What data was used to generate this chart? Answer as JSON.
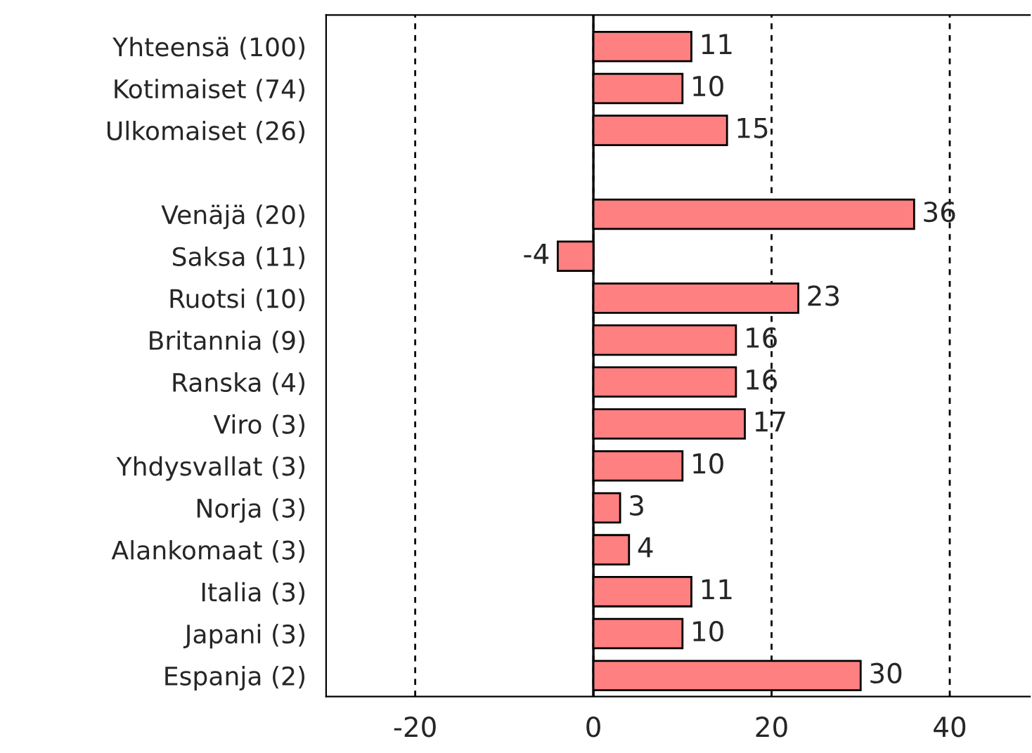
{
  "chart_data": {
    "type": "bar",
    "orientation": "horizontal",
    "categories": [
      "Yhteensä (100)",
      "Kotimaiset (74)",
      "Ulkomaiset (26)",
      null,
      "Venäjä (20)",
      "Saksa (11)",
      "Ruotsi (10)",
      "Britannia (9)",
      "Ranska (4)",
      "Viro (3)",
      "Yhdysvallat (3)",
      "Norja (3)",
      "Alankomaat (3)",
      "Italia (3)",
      "Japani (3)",
      "Espanja (2)"
    ],
    "values": [
      11,
      10,
      15,
      null,
      36,
      -4,
      23,
      16,
      16,
      17,
      10,
      3,
      4,
      11,
      10,
      30
    ],
    "color": "#ff8080",
    "data_labels": true,
    "xlim": [
      -30,
      49
    ],
    "xticks": [
      -20,
      0,
      20,
      40
    ],
    "grid": "x",
    "line_style": "dashed",
    "ref_lines": [
      {
        "axis": "x",
        "value": 0,
        "color": "#000000",
        "line_style": "solid"
      }
    ]
  }
}
